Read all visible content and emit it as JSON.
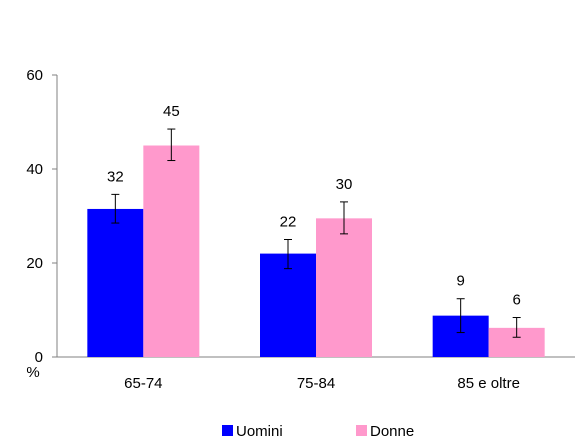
{
  "chart_data": {
    "type": "bar",
    "categories": [
      "65-74",
      "75-84",
      "85 e oltre"
    ],
    "series": [
      {
        "name": "Uomini",
        "color": "#0000ff",
        "values": [
          31.5,
          22,
          8.8
        ],
        "labels": [
          "32",
          "22",
          "9"
        ],
        "error_low": [
          28.5,
          18.8,
          5.2
        ],
        "error_high": [
          34.6,
          25,
          12.4
        ]
      },
      {
        "name": "Donne",
        "color": "#ff99cc",
        "values": [
          45,
          29.5,
          6.2
        ],
        "labels": [
          "45",
          "30",
          "6"
        ],
        "error_low": [
          41.8,
          26.2,
          4.2
        ],
        "error_high": [
          48.5,
          33,
          8.4
        ]
      }
    ],
    "yticks": [
      "0",
      "20",
      "40",
      "60"
    ],
    "ylim": [
      0,
      60
    ],
    "ylabel": "%",
    "xlabel": "",
    "grid": false,
    "legend_position": "bottom-center"
  }
}
